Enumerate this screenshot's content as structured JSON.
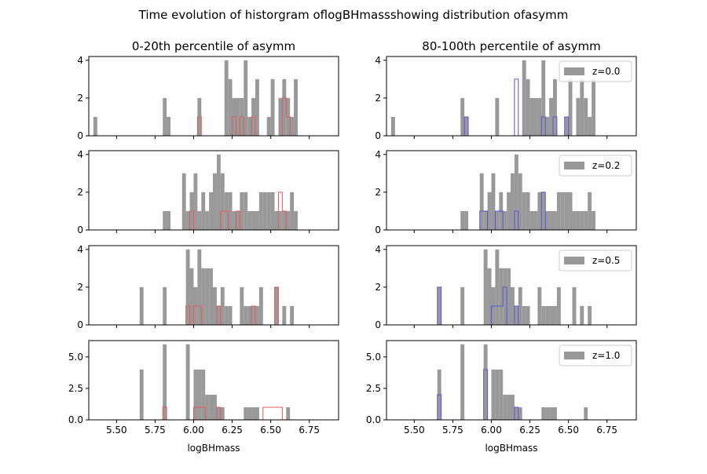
{
  "figure": {
    "title": "Time evolution of historgram oflogBHmassshowing distribution ofasymm",
    "col_titles": [
      "0-20th percentile of asymm",
      "80-100th percentile of asymm"
    ],
    "xlabel": "logBHmass"
  },
  "colors": {
    "gray_hist": "#999999",
    "left_highlight": "#e05a5a",
    "right_highlight": "#5555dd"
  },
  "chart_data": {
    "type": "bar",
    "bin_start": 5.35,
    "bin_width": 0.025,
    "xlim": [
      5.32,
      6.94
    ],
    "xticks": [
      5.5,
      5.75,
      6.0,
      6.25,
      6.5,
      6.75
    ],
    "xtick_labels": [
      "5.50",
      "5.75",
      "6.00",
      "6.25",
      "6.50",
      "6.75"
    ],
    "rows": [
      {
        "z_label": "z=0.0",
        "ylim": [
          0,
          4.2
        ],
        "yticks": [
          0,
          2,
          4
        ],
        "ytick_labels": [
          "0",
          "2",
          "4"
        ],
        "all_counts": [
          1,
          0,
          0,
          0,
          0,
          0,
          0,
          0,
          0,
          0,
          0,
          0,
          0,
          0,
          0,
          0,
          0,
          0,
          2,
          1,
          0,
          0,
          0,
          0,
          0,
          0,
          0,
          2,
          0,
          0,
          0,
          0,
          0,
          0,
          4,
          3,
          2,
          2,
          2,
          4,
          1,
          2,
          3,
          0,
          0,
          1,
          3,
          0,
          2,
          3,
          2,
          1,
          3
        ],
        "left_counts": [
          0,
          0,
          0,
          0,
          0,
          0,
          0,
          0,
          0,
          0,
          0,
          0,
          0,
          0,
          0,
          0,
          0,
          0,
          0,
          0,
          0,
          0,
          0,
          0,
          0,
          0,
          0,
          1,
          0,
          0,
          0,
          0,
          0,
          0,
          0,
          0,
          1,
          0,
          1,
          0,
          0,
          1,
          0,
          0,
          0,
          0,
          0,
          0,
          0,
          2,
          1,
          0,
          0
        ],
        "right_counts": [
          0,
          0,
          0,
          0,
          0,
          0,
          0,
          0,
          0,
          0,
          0,
          0,
          0,
          0,
          0,
          0,
          0,
          0,
          0,
          1,
          0,
          0,
          0,
          0,
          0,
          0,
          0,
          0,
          0,
          0,
          0,
          0,
          3,
          0,
          0,
          0,
          0,
          0,
          0,
          1,
          0,
          0,
          1,
          0,
          0,
          1,
          0,
          0,
          0,
          0,
          0,
          0,
          0
        ]
      },
      {
        "z_label": "z=0.2",
        "ylim": [
          0,
          4.2
        ],
        "yticks": [
          0,
          2,
          4
        ],
        "ytick_labels": [
          "0",
          "2",
          "4"
        ],
        "all_counts": [
          0,
          0,
          0,
          0,
          0,
          0,
          0,
          0,
          0,
          0,
          0,
          0,
          0,
          0,
          0,
          0,
          0,
          0,
          1,
          1,
          0,
          0,
          0,
          3,
          1,
          2,
          3,
          1,
          2,
          1,
          2,
          3,
          4,
          3,
          2,
          2,
          1,
          1,
          2,
          2,
          1,
          1,
          1,
          2,
          2,
          2,
          2,
          1,
          1,
          1,
          1,
          2,
          1
        ],
        "left_counts": [
          0,
          0,
          0,
          0,
          0,
          0,
          0,
          0,
          0,
          0,
          0,
          0,
          0,
          0,
          0,
          0,
          0,
          0,
          0,
          0,
          0,
          0,
          0,
          0,
          0,
          1,
          0,
          0,
          0,
          0,
          0,
          0,
          0,
          1,
          1,
          0,
          0,
          1,
          0,
          0,
          0,
          0,
          0,
          0,
          0,
          0,
          0,
          0,
          2,
          1,
          0,
          0,
          0
        ],
        "right_counts": [
          0,
          0,
          0,
          0,
          0,
          0,
          0,
          0,
          0,
          0,
          0,
          0,
          0,
          0,
          0,
          0,
          0,
          0,
          0,
          0,
          0,
          0,
          0,
          1,
          1,
          0,
          0,
          1,
          1,
          0,
          0,
          0,
          1,
          0,
          0,
          0,
          0,
          0,
          0,
          2,
          0,
          0,
          0,
          0,
          0,
          0,
          0,
          0,
          0,
          0,
          0,
          0,
          0
        ]
      },
      {
        "z_label": "z=0.5",
        "ylim": [
          0,
          4.2
        ],
        "yticks": [
          0,
          2,
          4
        ],
        "ytick_labels": [
          "0",
          "2",
          "4"
        ],
        "all_counts": [
          0,
          0,
          0,
          0,
          0,
          0,
          0,
          0,
          0,
          0,
          0,
          0,
          2,
          0,
          0,
          0,
          0,
          0,
          2,
          0,
          0,
          0,
          0,
          0,
          4,
          3,
          2,
          4,
          3,
          3,
          3,
          2,
          1,
          2,
          1,
          1,
          0,
          0,
          2,
          1,
          1,
          1,
          1,
          2,
          0,
          0,
          0,
          2,
          0,
          1,
          0,
          1,
          0
        ],
        "left_counts": [
          0,
          0,
          0,
          0,
          0,
          0,
          0,
          0,
          0,
          0,
          0,
          0,
          0,
          0,
          0,
          0,
          0,
          0,
          0,
          0,
          0,
          0,
          0,
          0,
          1,
          0,
          1,
          1,
          0,
          0,
          0,
          0,
          1,
          0,
          0,
          0,
          0,
          0,
          0,
          0,
          0,
          1,
          0,
          0,
          0,
          0,
          0,
          2,
          0,
          0,
          0,
          0,
          0
        ],
        "right_counts": [
          0,
          0,
          0,
          0,
          0,
          0,
          0,
          0,
          0,
          0,
          0,
          0,
          2,
          0,
          0,
          0,
          0,
          0,
          0,
          0,
          0,
          0,
          0,
          0,
          0,
          0,
          1,
          1,
          1,
          2,
          0,
          0,
          1,
          0,
          0,
          0,
          0,
          0,
          0,
          0,
          0,
          0,
          0,
          0,
          0,
          0,
          0,
          0,
          0,
          0,
          0,
          0,
          0
        ]
      },
      {
        "z_label": "z=1.0",
        "ylim": [
          0,
          6.3
        ],
        "yticks": [
          0,
          2.5,
          5
        ],
        "ytick_labels": [
          "0.0",
          "2.5",
          "5.0"
        ],
        "all_counts": [
          0,
          0,
          0,
          0,
          0,
          0,
          0,
          0,
          0,
          0,
          0,
          0,
          4,
          0,
          0,
          0,
          0,
          0,
          6,
          0,
          0,
          0,
          0,
          0,
          6,
          0,
          4,
          4,
          4,
          2,
          2,
          2,
          1,
          1,
          0,
          0,
          0,
          0,
          0,
          1,
          1,
          1,
          1,
          0,
          0,
          0,
          0,
          0,
          0,
          0,
          1,
          0,
          0
        ],
        "left_counts": [
          0,
          0,
          0,
          0,
          0,
          0,
          0,
          0,
          0,
          0,
          0,
          0,
          0,
          0,
          0,
          0,
          0,
          0,
          1,
          0,
          0,
          0,
          0,
          0,
          0,
          0,
          1,
          1,
          1,
          0,
          0,
          0,
          1,
          0,
          0,
          0,
          0,
          0,
          0,
          0,
          0,
          0,
          0,
          0,
          1,
          1,
          1,
          1,
          1,
          0,
          0,
          0,
          0
        ],
        "right_counts": [
          0,
          0,
          0,
          0,
          0,
          0,
          0,
          0,
          0,
          0,
          0,
          0,
          2,
          0,
          0,
          0,
          0,
          0,
          0,
          0,
          0,
          0,
          0,
          0,
          4,
          0,
          0,
          0,
          0,
          0,
          0,
          0,
          1,
          0,
          0,
          0,
          0,
          0,
          0,
          0,
          0,
          0,
          0,
          0,
          0,
          0,
          0,
          0,
          0,
          0,
          0,
          0,
          0
        ]
      }
    ]
  }
}
